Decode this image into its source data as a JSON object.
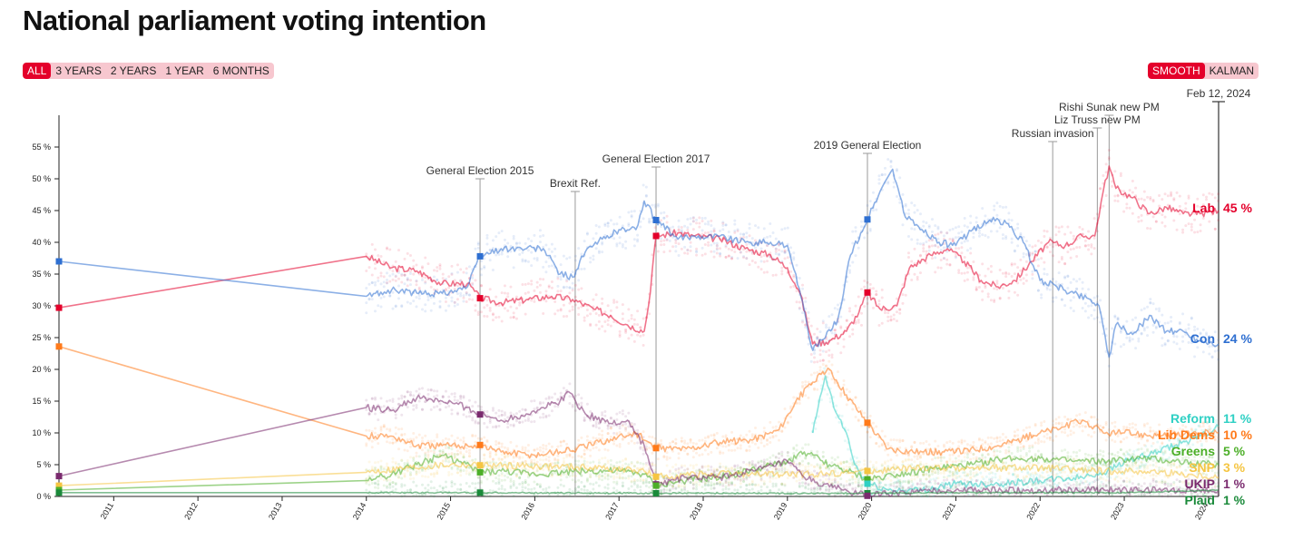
{
  "page_title": "National parliament voting intention",
  "ranges": [
    {
      "label": "ALL",
      "active": true
    },
    {
      "label": "3 YEARS",
      "active": false
    },
    {
      "label": "2 YEARS",
      "active": false
    },
    {
      "label": "1 YEAR",
      "active": false
    },
    {
      "label": "6 MONTHS",
      "active": false
    }
  ],
  "modes": [
    {
      "label": "SMOOTH",
      "active": true
    },
    {
      "label": "KALMAN",
      "active": false
    }
  ],
  "chart_data": {
    "type": "line",
    "title": "National parliament voting intention",
    "xlim": [
      2010.35,
      2024.12
    ],
    "ylim": [
      0,
      60
    ],
    "y_ticks": [
      0,
      5,
      10,
      15,
      20,
      25,
      30,
      35,
      40,
      45,
      50,
      55
    ],
    "y_tick_suffix": " %",
    "x_ticks": [
      "2011",
      "2012",
      "2013",
      "2014",
      "2015",
      "2016",
      "2017",
      "2018",
      "2019",
      "2020",
      "2021",
      "2022",
      "2023",
      "2024"
    ],
    "current_date": "Feb 12, 2024",
    "events": [
      {
        "label": "General Election 2015",
        "x": 2015.35
      },
      {
        "label": "Brexit Ref.",
        "x": 2016.48
      },
      {
        "label": "General Election 2017",
        "x": 2017.44
      },
      {
        "label": "2019 General Election",
        "x": 2019.95
      },
      {
        "label": "Russian invasion",
        "x": 2022.15
      },
      {
        "label": "Liz Truss new PM",
        "x": 2022.68
      },
      {
        "label": "Rishi Sunak new PM",
        "x": 2022.82
      }
    ],
    "elections": [
      {
        "x": 2010.35,
        "results": {
          "Con": 37,
          "Lab": 29.7,
          "Lib Dems": 23.6,
          "UKIP": 3.2,
          "SNP": 1.7,
          "Greens": 1,
          "Plaid": 0.6
        }
      },
      {
        "x": 2015.35,
        "results": {
          "Con": 37.8,
          "Lab": 31.2,
          "UKIP": 12.9,
          "Lib Dems": 8.1,
          "SNP": 4.9,
          "Greens": 3.8,
          "Plaid": 0.6
        }
      },
      {
        "x": 2017.44,
        "results": {
          "Con": 43.5,
          "Lab": 41,
          "Lib Dems": 7.6,
          "SNP": 3.1,
          "UKIP": 1.9,
          "Greens": 1.7,
          "Plaid": 0.5
        }
      },
      {
        "x": 2019.95,
        "results": {
          "Con": 43.6,
          "Lab": 32.1,
          "Lib Dems": 11.6,
          "SNP": 4,
          "Greens": 2.7,
          "Reform": 2,
          "Plaid": 0.5,
          "UKIP": 0.1
        }
      }
    ],
    "series": [
      {
        "name": "Lab",
        "color": "#e4002b",
        "latest": "45 %",
        "points": [
          [
            2010.35,
            29.7
          ],
          [
            2014.0,
            37.8
          ],
          [
            2014.3,
            36
          ],
          [
            2014.6,
            35.5
          ],
          [
            2014.9,
            33.5
          ],
          [
            2015.2,
            33.5
          ],
          [
            2015.35,
            31.2
          ],
          [
            2015.6,
            30.5
          ],
          [
            2015.9,
            31
          ],
          [
            2016.2,
            31.5
          ],
          [
            2016.45,
            31
          ],
          [
            2016.7,
            29.5
          ],
          [
            2016.9,
            28.5
          ],
          [
            2017.1,
            27
          ],
          [
            2017.3,
            26
          ],
          [
            2017.35,
            30
          ],
          [
            2017.44,
            41
          ],
          [
            2017.7,
            41.5
          ],
          [
            2017.9,
            41
          ],
          [
            2018.2,
            40.5
          ],
          [
            2018.5,
            39
          ],
          [
            2018.8,
            38
          ],
          [
            2019.0,
            36
          ],
          [
            2019.15,
            32
          ],
          [
            2019.3,
            24
          ],
          [
            2019.5,
            24.5
          ],
          [
            2019.7,
            26
          ],
          [
            2019.85,
            29
          ],
          [
            2019.95,
            32.1
          ],
          [
            2020.1,
            29.5
          ],
          [
            2020.3,
            30
          ],
          [
            2020.45,
            36
          ],
          [
            2020.7,
            38
          ],
          [
            2020.9,
            39
          ],
          [
            2021.1,
            37
          ],
          [
            2021.3,
            34
          ],
          [
            2021.5,
            33
          ],
          [
            2021.7,
            34
          ],
          [
            2021.9,
            37
          ],
          [
            2022.1,
            40
          ],
          [
            2022.3,
            39.5
          ],
          [
            2022.5,
            41
          ],
          [
            2022.65,
            41
          ],
          [
            2022.75,
            48
          ],
          [
            2022.82,
            52
          ],
          [
            2022.9,
            48.5
          ],
          [
            2023.1,
            47
          ],
          [
            2023.3,
            44.5
          ],
          [
            2023.5,
            45.5
          ],
          [
            2023.7,
            44.5
          ],
          [
            2023.9,
            44.5
          ],
          [
            2024.12,
            45
          ]
        ]
      },
      {
        "name": "Con",
        "color": "#2e6fd1",
        "latest": "24 %",
        "points": [
          [
            2010.35,
            37
          ],
          [
            2014.0,
            31.5
          ],
          [
            2014.3,
            32.5
          ],
          [
            2014.6,
            32
          ],
          [
            2014.9,
            32
          ],
          [
            2015.2,
            33
          ],
          [
            2015.35,
            37.8
          ],
          [
            2015.6,
            39
          ],
          [
            2015.9,
            39
          ],
          [
            2016.1,
            39
          ],
          [
            2016.3,
            35
          ],
          [
            2016.45,
            34.5
          ],
          [
            2016.6,
            38.5
          ],
          [
            2016.8,
            40.5
          ],
          [
            2017.0,
            42
          ],
          [
            2017.2,
            42
          ],
          [
            2017.3,
            46.5
          ],
          [
            2017.44,
            43.5
          ],
          [
            2017.7,
            40.5
          ],
          [
            2017.9,
            41
          ],
          [
            2018.2,
            41
          ],
          [
            2018.5,
            40
          ],
          [
            2018.8,
            40
          ],
          [
            2019.0,
            39.5
          ],
          [
            2019.1,
            35
          ],
          [
            2019.3,
            23
          ],
          [
            2019.45,
            25
          ],
          [
            2019.6,
            28
          ],
          [
            2019.75,
            38
          ],
          [
            2019.95,
            43.6
          ],
          [
            2020.1,
            48
          ],
          [
            2020.25,
            51.5
          ],
          [
            2020.4,
            44
          ],
          [
            2020.6,
            42
          ],
          [
            2020.8,
            40
          ],
          [
            2021.0,
            39.5
          ],
          [
            2021.2,
            42
          ],
          [
            2021.4,
            43.5
          ],
          [
            2021.6,
            43
          ],
          [
            2021.8,
            40
          ],
          [
            2022.0,
            34
          ],
          [
            2022.2,
            33
          ],
          [
            2022.4,
            32
          ],
          [
            2022.6,
            31
          ],
          [
            2022.7,
            30
          ],
          [
            2022.82,
            22
          ],
          [
            2022.9,
            27
          ],
          [
            2023.1,
            25.5
          ],
          [
            2023.3,
            28.5
          ],
          [
            2023.5,
            26
          ],
          [
            2023.7,
            26
          ],
          [
            2023.9,
            24.5
          ],
          [
            2024.12,
            24
          ]
        ]
      },
      {
        "name": "Reform",
        "color": "#2fd0c4",
        "latest": "11 %",
        "points": [
          [
            2019.3,
            10
          ],
          [
            2019.45,
            19
          ],
          [
            2019.55,
            14
          ],
          [
            2019.7,
            10
          ],
          [
            2019.8,
            5
          ],
          [
            2019.95,
            2
          ],
          [
            2020.2,
            1
          ],
          [
            2020.6,
            1
          ],
          [
            2021.0,
            2
          ],
          [
            2021.5,
            2
          ],
          [
            2022.0,
            2.5
          ],
          [
            2022.5,
            3
          ],
          [
            2022.8,
            4
          ],
          [
            2023.0,
            5.5
          ],
          [
            2023.3,
            6.5
          ],
          [
            2023.6,
            8
          ],
          [
            2023.9,
            9.5
          ],
          [
            2024.12,
            11
          ]
        ]
      },
      {
        "name": "Lib Dems",
        "color": "#ff7a1a",
        "latest": "10 %",
        "points": [
          [
            2010.35,
            23.6
          ],
          [
            2014.0,
            9.5
          ],
          [
            2014.3,
            9.5
          ],
          [
            2014.6,
            8
          ],
          [
            2014.9,
            8
          ],
          [
            2015.2,
            8
          ],
          [
            2015.35,
            8.1
          ],
          [
            2015.6,
            7
          ],
          [
            2016.0,
            6.5
          ],
          [
            2016.5,
            7.5
          ],
          [
            2016.9,
            9
          ],
          [
            2017.2,
            10
          ],
          [
            2017.44,
            7.6
          ],
          [
            2017.8,
            7.5
          ],
          [
            2018.2,
            8.5
          ],
          [
            2018.6,
            9
          ],
          [
            2018.9,
            10.5
          ],
          [
            2019.1,
            15
          ],
          [
            2019.3,
            18
          ],
          [
            2019.5,
            20
          ],
          [
            2019.7,
            16
          ],
          [
            2019.95,
            11.6
          ],
          [
            2020.2,
            7.5
          ],
          [
            2020.6,
            7
          ],
          [
            2021.0,
            7
          ],
          [
            2021.5,
            8
          ],
          [
            2022.0,
            10
          ],
          [
            2022.3,
            11
          ],
          [
            2022.5,
            12
          ],
          [
            2022.75,
            10
          ],
          [
            2023.0,
            10
          ],
          [
            2023.5,
            9.5
          ],
          [
            2023.9,
            10
          ],
          [
            2024.12,
            10
          ]
        ]
      },
      {
        "name": "Greens",
        "color": "#4caf28",
        "latest": "5 %",
        "points": [
          [
            2010.35,
            1
          ],
          [
            2014.0,
            2.5
          ],
          [
            2014.3,
            3.5
          ],
          [
            2014.6,
            5
          ],
          [
            2014.9,
            6.5
          ],
          [
            2015.1,
            5.5
          ],
          [
            2015.35,
            3.8
          ],
          [
            2015.6,
            4
          ],
          [
            2016.0,
            3.5
          ],
          [
            2016.5,
            4
          ],
          [
            2017.0,
            4
          ],
          [
            2017.3,
            3.5
          ],
          [
            2017.44,
            1.7
          ],
          [
            2017.8,
            2.5
          ],
          [
            2018.2,
            3
          ],
          [
            2018.7,
            4.5
          ],
          [
            2019.0,
            5.5
          ],
          [
            2019.2,
            7
          ],
          [
            2019.5,
            5
          ],
          [
            2019.7,
            4
          ],
          [
            2019.95,
            2.7
          ],
          [
            2020.3,
            3.5
          ],
          [
            2020.8,
            4.5
          ],
          [
            2021.2,
            5
          ],
          [
            2021.6,
            6
          ],
          [
            2022.0,
            6
          ],
          [
            2022.4,
            5.5
          ],
          [
            2022.8,
            5.5
          ],
          [
            2023.2,
            6
          ],
          [
            2023.6,
            5.5
          ],
          [
            2024.12,
            5
          ]
        ]
      },
      {
        "name": "SNP",
        "color": "#f5c542",
        "latest": "3 %",
        "points": [
          [
            2010.35,
            1.7
          ],
          [
            2014.0,
            3.8
          ],
          [
            2014.5,
            4.5
          ],
          [
            2015.0,
            5
          ],
          [
            2015.35,
            4.9
          ],
          [
            2016.0,
            4.8
          ],
          [
            2016.8,
            4.5
          ],
          [
            2017.3,
            4
          ],
          [
            2017.44,
            3.1
          ],
          [
            2018.0,
            3.5
          ],
          [
            2018.6,
            3.5
          ],
          [
            2019.3,
            3.5
          ],
          [
            2019.95,
            4
          ],
          [
            2020.6,
            4.5
          ],
          [
            2021.3,
            4.5
          ],
          [
            2022.0,
            4.5
          ],
          [
            2022.6,
            4
          ],
          [
            2023.2,
            4
          ],
          [
            2023.7,
            3.5
          ],
          [
            2024.12,
            3
          ]
        ]
      },
      {
        "name": "UKIP",
        "color": "#7a2a6e",
        "latest": "1 %",
        "points": [
          [
            2010.35,
            3.2
          ],
          [
            2014.0,
            14
          ],
          [
            2014.3,
            13.5
          ],
          [
            2014.6,
            15.5
          ],
          [
            2014.9,
            15
          ],
          [
            2015.2,
            14
          ],
          [
            2015.35,
            12.9
          ],
          [
            2015.6,
            12
          ],
          [
            2015.9,
            13
          ],
          [
            2016.1,
            14
          ],
          [
            2016.3,
            15
          ],
          [
            2016.4,
            16.5
          ],
          [
            2016.6,
            13
          ],
          [
            2016.9,
            11.5
          ],
          [
            2017.1,
            12
          ],
          [
            2017.3,
            8
          ],
          [
            2017.44,
            1.9
          ],
          [
            2017.8,
            3
          ],
          [
            2018.2,
            3
          ],
          [
            2018.6,
            4
          ],
          [
            2019.0,
            5.5
          ],
          [
            2019.2,
            3
          ],
          [
            2019.5,
            1.5
          ],
          [
            2019.95,
            0.1
          ],
          [
            2020.3,
            0.5
          ],
          [
            2021.0,
            1
          ],
          [
            2021.6,
            1
          ],
          [
            2022.2,
            1
          ],
          [
            2022.8,
            1
          ],
          [
            2023.4,
            1
          ],
          [
            2024.12,
            1
          ]
        ]
      },
      {
        "name": "Plaid",
        "color": "#1a8a3a",
        "latest": "1 %",
        "points": [
          [
            2010.35,
            0.6
          ],
          [
            2014.0,
            0.6
          ],
          [
            2015.35,
            0.6
          ],
          [
            2017.44,
            0.5
          ],
          [
            2019.95,
            0.5
          ],
          [
            2021.0,
            0.6
          ],
          [
            2022.0,
            0.6
          ],
          [
            2023.0,
            0.6
          ],
          [
            2024.12,
            1
          ]
        ]
      }
    ]
  }
}
